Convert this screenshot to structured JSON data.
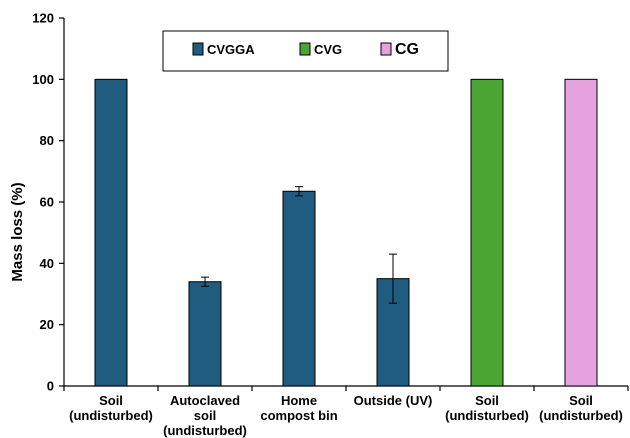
{
  "chart_data": {
    "type": "bar",
    "title": "",
    "xlabel": "",
    "ylabel": "Mass loss (%)",
    "ylim": [
      0,
      120
    ],
    "yticks": [
      0,
      20,
      40,
      60,
      80,
      100,
      120
    ],
    "grid": false,
    "legend_position": "top-center",
    "series": [
      {
        "name": "CVGGA",
        "color": "#1f5c7f"
      },
      {
        "name": "CVG",
        "color": "#4aa534"
      },
      {
        "name": "CG",
        "color": "#e6a2de"
      }
    ],
    "bars": [
      {
        "label": [
          "Soil",
          "(undisturbed)"
        ],
        "series": "CVGGA",
        "value": 100,
        "error": null
      },
      {
        "label": [
          "Autoclaved",
          "soil",
          "(undisturbed)"
        ],
        "series": "CVGGA",
        "value": 34,
        "error": 1.5
      },
      {
        "label": [
          "Home",
          "compost bin"
        ],
        "series": "CVGGA",
        "value": 63.5,
        "error": 1.5
      },
      {
        "label": [
          "Outside (UV)"
        ],
        "series": "CVGGA",
        "value": 35,
        "error": 8
      },
      {
        "label": [
          "Soil",
          "(undisturbed)"
        ],
        "series": "CVG",
        "value": 100,
        "error": null
      },
      {
        "label": [
          "Soil",
          "(undisturbed)"
        ],
        "series": "CG",
        "value": 100,
        "error": null
      }
    ]
  }
}
